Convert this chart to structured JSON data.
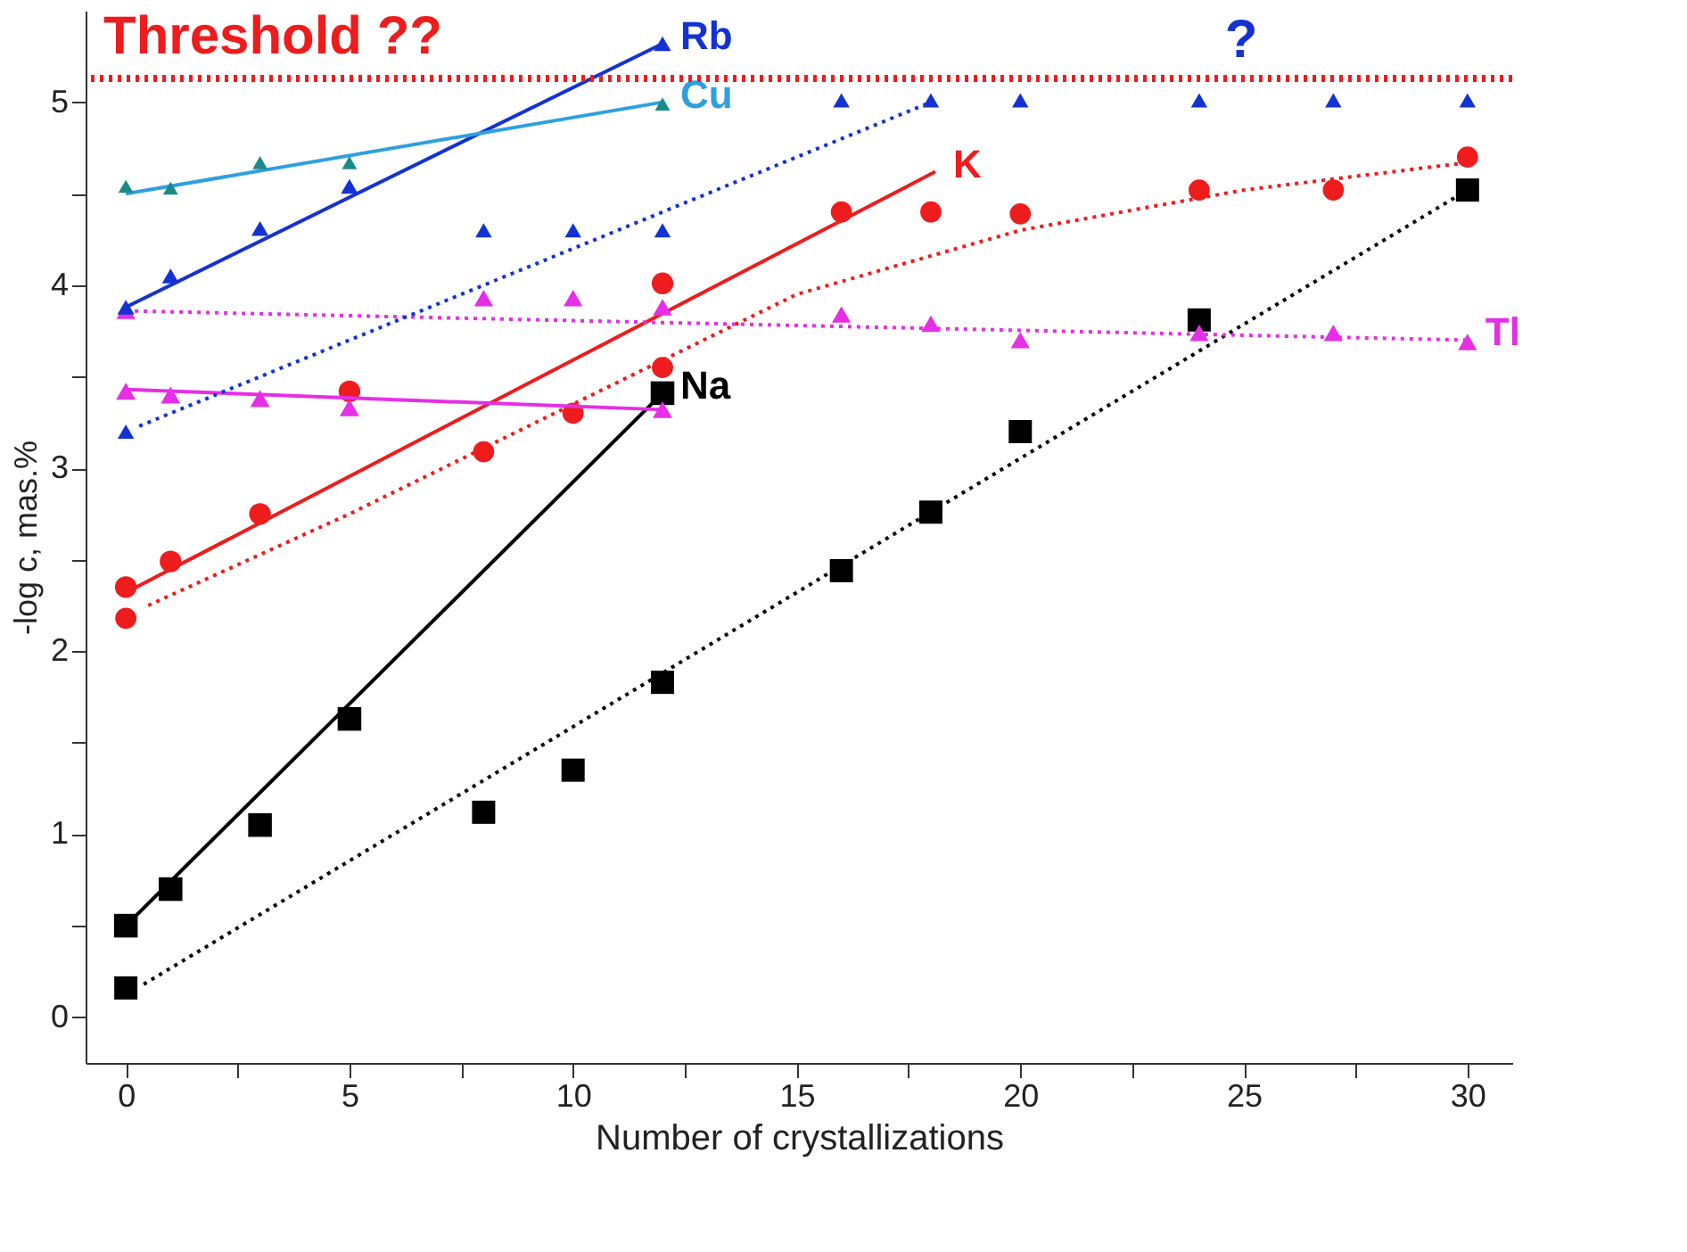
{
  "chart_data": {
    "type": "scatter",
    "xlabel": "Number of crystallizations",
    "ylabel": "-log c, mas.%",
    "xlim": [
      -0.9,
      31
    ],
    "ylim": [
      -0.25,
      5.5
    ],
    "xticks": [
      0,
      {
        "value": 2.5,
        "label": null
      },
      5,
      {
        "value": 7.5,
        "label": null
      },
      10,
      {
        "value": 12.5,
        "label": null
      },
      15,
      {
        "value": 17.5,
        "label": null
      },
      20,
      {
        "value": 22.5,
        "label": null
      },
      25,
      {
        "value": 27.5,
        "label": null
      },
      30
    ],
    "yticks": [
      0,
      {
        "value": 0.5,
        "label": null
      },
      1,
      {
        "value": 1.5,
        "label": null
      },
      2,
      {
        "value": 2.5,
        "label": null
      },
      3,
      {
        "value": 3.5,
        "label": null
      },
      4,
      {
        "value": 4.5,
        "label": null
      },
      5
    ],
    "grid": false,
    "ref_lines": [
      {
        "axis": "y",
        "value": 5.13,
        "label": "Threshold ??",
        "color": "#ee1c1c",
        "line_style": "dotted"
      }
    ],
    "annotations": [
      "?"
    ],
    "series": [
      {
        "type": "line",
        "name": "Na",
        "color": "#000000",
        "line_style": "solid",
        "x": [
          0,
          12
        ],
        "values": [
          0.5,
          3.41
        ]
      },
      {
        "type": "line",
        "color": "#000000",
        "line_style": "dotted",
        "x": [
          0.4,
          30
        ],
        "values": [
          0.18,
          4.52
        ]
      },
      {
        "color": "#000000",
        "marker": "square",
        "x": [
          0,
          1,
          3,
          5,
          12
        ],
        "values": [
          0.5,
          0.7,
          1.05,
          1.63,
          3.41
        ]
      },
      {
        "color": "#000000",
        "marker": "square",
        "x": [
          0,
          8,
          10,
          12,
          16,
          18,
          20,
          24,
          30
        ],
        "values": [
          0.16,
          1.12,
          1.35,
          1.83,
          2.44,
          2.76,
          3.2,
          3.81,
          4.52
        ]
      },
      {
        "type": "line",
        "name": "K",
        "color": "#ee1c1c",
        "line_style": "solid",
        "x": [
          0,
          18.1
        ],
        "values": [
          2.32,
          4.62
        ]
      },
      {
        "type": "line",
        "color": "#ee1c1c",
        "line_style": "dotted",
        "x": [
          0.5,
          5,
          10,
          15,
          20,
          25,
          30
        ],
        "values": [
          2.25,
          2.75,
          3.35,
          3.95,
          4.3,
          4.52,
          4.67
        ]
      },
      {
        "color": "#ee1c1c",
        "marker": "circle",
        "x": [
          0,
          1,
          3,
          5,
          12
        ],
        "values": [
          2.35,
          2.49,
          2.75,
          3.42,
          4.01
        ]
      },
      {
        "color": "#ee1c1c",
        "marker": "circle",
        "x": [
          0,
          8,
          10,
          12,
          16,
          18,
          20,
          24,
          27,
          30
        ],
        "values": [
          2.18,
          3.09,
          3.3,
          3.55,
          4.4,
          4.4,
          4.39,
          4.52,
          4.52,
          4.7
        ]
      },
      {
        "type": "line",
        "color": "#e62ee6",
        "line_style": "solid",
        "x": [
          0,
          12
        ],
        "values": [
          3.43,
          3.32
        ]
      },
      {
        "type": "line",
        "name": "Tl",
        "color": "#e62ee6",
        "line_style": "dotted",
        "x": [
          0,
          30
        ],
        "values": [
          3.86,
          3.7
        ]
      },
      {
        "color": "#e62ee6",
        "marker": "triangle",
        "x": [
          0,
          1,
          3,
          5,
          12
        ],
        "values": [
          3.42,
          3.4,
          3.38,
          3.33,
          3.32
        ]
      },
      {
        "color": "#e62ee6",
        "marker": "triangle",
        "x": [
          0,
          8,
          10,
          12,
          16,
          18,
          20,
          24,
          27,
          30
        ],
        "values": [
          3.86,
          3.93,
          3.93,
          3.88,
          3.84,
          3.79,
          3.7,
          3.74,
          3.74,
          3.69
        ]
      },
      {
        "type": "line",
        "name": "Rb",
        "color": "#1432d2",
        "line_style": "solid",
        "x": [
          0,
          12
        ],
        "values": [
          3.88,
          5.32
        ]
      },
      {
        "type": "line",
        "color": "#1432d2",
        "line_style": "dotted",
        "x": [
          0.3,
          18
        ],
        "values": [
          3.23,
          5.0
        ]
      },
      {
        "color": "#1432d2",
        "marker": "triangle",
        "x": [
          0,
          1,
          3,
          5,
          12
        ],
        "values": [
          3.88,
          4.05,
          4.31,
          4.54,
          5.32
        ]
      },
      {
        "color": "#1432d2",
        "marker": "triangle",
        "x": [
          0,
          8,
          10,
          12,
          16,
          18,
          20,
          24,
          27,
          30
        ],
        "values": [
          3.2,
          4.3,
          4.3,
          4.3,
          5.01,
          5.01,
          5.01,
          5.01,
          5.01,
          5.01
        ]
      },
      {
        "type": "line",
        "name": "Cu",
        "color": "#2ea0e0",
        "line_style": "solid",
        "x": [
          0,
          12
        ],
        "values": [
          4.5,
          5.0
        ]
      },
      {
        "color": "#1a8a8a",
        "marker": "triangle",
        "x": [
          0,
          1,
          3,
          5,
          12
        ],
        "values": [
          4.54,
          4.53,
          4.67,
          4.67,
          4.99
        ]
      }
    ]
  }
}
